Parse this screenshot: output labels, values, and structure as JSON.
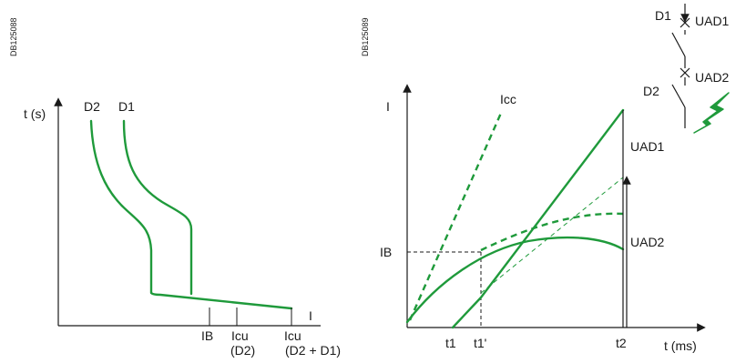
{
  "left": {
    "ref": "DB125088",
    "y_axis": "t (s)",
    "x_axis": "I",
    "curves": [
      "D2",
      "D1"
    ],
    "ticks": {
      "ib": "IB",
      "icu_d2_line1": "Icu",
      "icu_d2_line2": "(D2)",
      "icu_d2d1_line1": "Icu",
      "icu_d2d1_line2": "(D2 + D1)"
    }
  },
  "right": {
    "ref": "DB125089",
    "y_axis": "I",
    "x_axis": "t (ms)",
    "icc": "Icc",
    "ib": "IB",
    "uad1": "UAD1",
    "uad2": "UAD2",
    "ticks": {
      "t1": "t1",
      "t1p": "t1'",
      "t2": "t2"
    },
    "schematic": {
      "d1": "D1",
      "d2": "D2",
      "uad1": "UAD1",
      "uad2": "UAD2"
    }
  },
  "colors": {
    "curve": "#1f9a3b",
    "axis": "#1a1a1a"
  }
}
